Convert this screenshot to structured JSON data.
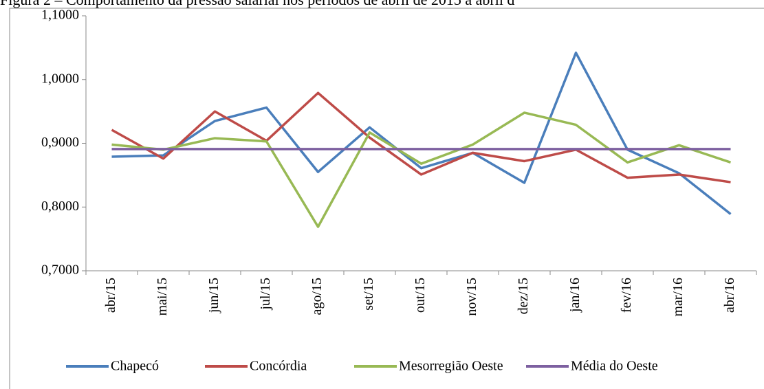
{
  "chart_data": {
    "type": "line",
    "title": "Figura 2 – Comportamento da pressão salarial nos períodos de abril de 2015 a abril d",
    "categories": [
      "abr/15",
      "mai/15",
      "jun/15",
      "jul/15",
      "ago/15",
      "set/15",
      "out/15",
      "nov/15",
      "dez/15",
      "jan/16",
      "fev/16",
      "mar/16",
      "abr/16"
    ],
    "series": [
      {
        "name": "Chapecó",
        "color": "#4a7ebb",
        "values": [
          0.879,
          0.881,
          0.935,
          0.956,
          0.855,
          0.925,
          0.861,
          0.885,
          0.838,
          1.042,
          0.89,
          0.853,
          0.789
        ]
      },
      {
        "name": "Concórdia",
        "color": "#be4b48",
        "values": [
          0.921,
          0.876,
          0.95,
          0.904,
          0.979,
          0.909,
          0.851,
          0.885,
          0.872,
          0.89,
          0.846,
          0.851,
          0.839
        ]
      },
      {
        "name": "Mesorregião Oeste",
        "color": "#98b954",
        "values": [
          0.898,
          0.89,
          0.908,
          0.903,
          0.769,
          0.917,
          0.868,
          0.898,
          0.948,
          0.929,
          0.87,
          0.897,
          0.87
        ]
      },
      {
        "name": "Média do Oeste",
        "color": "#7d60a0",
        "values": [
          0.891,
          0.891,
          0.891,
          0.891,
          0.891,
          0.891,
          0.891,
          0.891,
          0.891,
          0.891,
          0.891,
          0.891,
          0.891
        ]
      }
    ],
    "ylim": [
      0.7,
      1.1
    ],
    "yticks": [
      {
        "value": 0.7,
        "label": "0,7000"
      },
      {
        "value": 0.8,
        "label": "0,8000"
      },
      {
        "value": 0.9,
        "label": "0,9000"
      },
      {
        "value": 1.0,
        "label": "1,0000"
      },
      {
        "value": 1.1,
        "label": "1,1000"
      }
    ],
    "grid": false,
    "legend": "bottom"
  }
}
